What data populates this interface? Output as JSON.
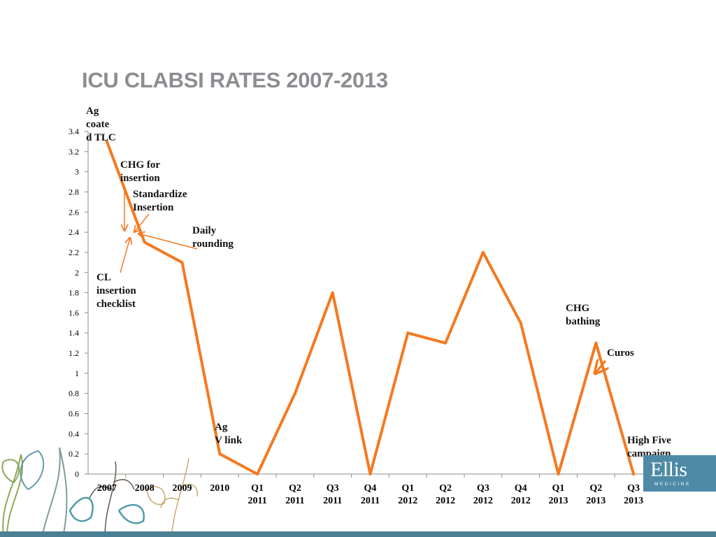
{
  "slide": {
    "title": "ICU CLABSI RATES 2007-2013"
  },
  "logo": {
    "name": "Ellis",
    "sub": "MEDICINE"
  },
  "colors": {
    "line": "#f47920",
    "title": "#8c8d91",
    "footer": "#4a7f94",
    "logo_bg": "#4e8aa6"
  },
  "annotations": [
    {
      "id": "ag-coated",
      "lines": [
        "Ag",
        "coate",
        "d TLC"
      ]
    },
    {
      "id": "chg-insertion",
      "lines": [
        "CHG for",
        "insertion"
      ]
    },
    {
      "id": "standardize",
      "lines": [
        "Standardize",
        "Insertion"
      ]
    },
    {
      "id": "daily-rounding",
      "lines": [
        "Daily",
        "rounding"
      ]
    },
    {
      "id": "cl-checklist",
      "lines": [
        "CL",
        "insertion",
        "checklist"
      ]
    },
    {
      "id": "ag-vlink",
      "lines": [
        "Ag",
        "V link"
      ]
    },
    {
      "id": "chg-bathing",
      "lines": [
        "CHG",
        "bathing"
      ]
    },
    {
      "id": "curos",
      "lines": [
        "Curos"
      ]
    },
    {
      "id": "high-five",
      "lines": [
        "High Five",
        "campaign"
      ]
    }
  ],
  "chart_data": {
    "type": "line",
    "categories": [
      [
        "2007"
      ],
      [
        "2008"
      ],
      [
        "2009"
      ],
      [
        "2010"
      ],
      [
        "Q1",
        "2011"
      ],
      [
        "Q2",
        "2011"
      ],
      [
        "Q3",
        "2011"
      ],
      [
        "Q4",
        "2011"
      ],
      [
        "Q1",
        "2012"
      ],
      [
        "Q2",
        "2012"
      ],
      [
        "Q3",
        "2012"
      ],
      [
        "Q4",
        "2012"
      ],
      [
        "Q1",
        "2013"
      ],
      [
        "Q2",
        "2013"
      ],
      [
        "Q3",
        "2013"
      ]
    ],
    "series": [
      {
        "values": [
          3.3,
          2.3,
          2.1,
          0.2,
          0,
          0.8,
          1.8,
          0,
          1.4,
          1.3,
          2.2,
          1.5,
          0,
          1.3,
          0
        ]
      }
    ],
    "y_ticks": [
      "0",
      "0.2",
      "0.4",
      "0.6",
      "0.8",
      "1",
      "1.2",
      "1.4",
      "1.6",
      "1.8",
      "2",
      "2.2",
      "2.4",
      "2.6",
      "2.8",
      "3",
      "3.2",
      "3.4"
    ],
    "ylim": [
      0,
      3.4
    ],
    "grid": false,
    "legend": "none"
  }
}
